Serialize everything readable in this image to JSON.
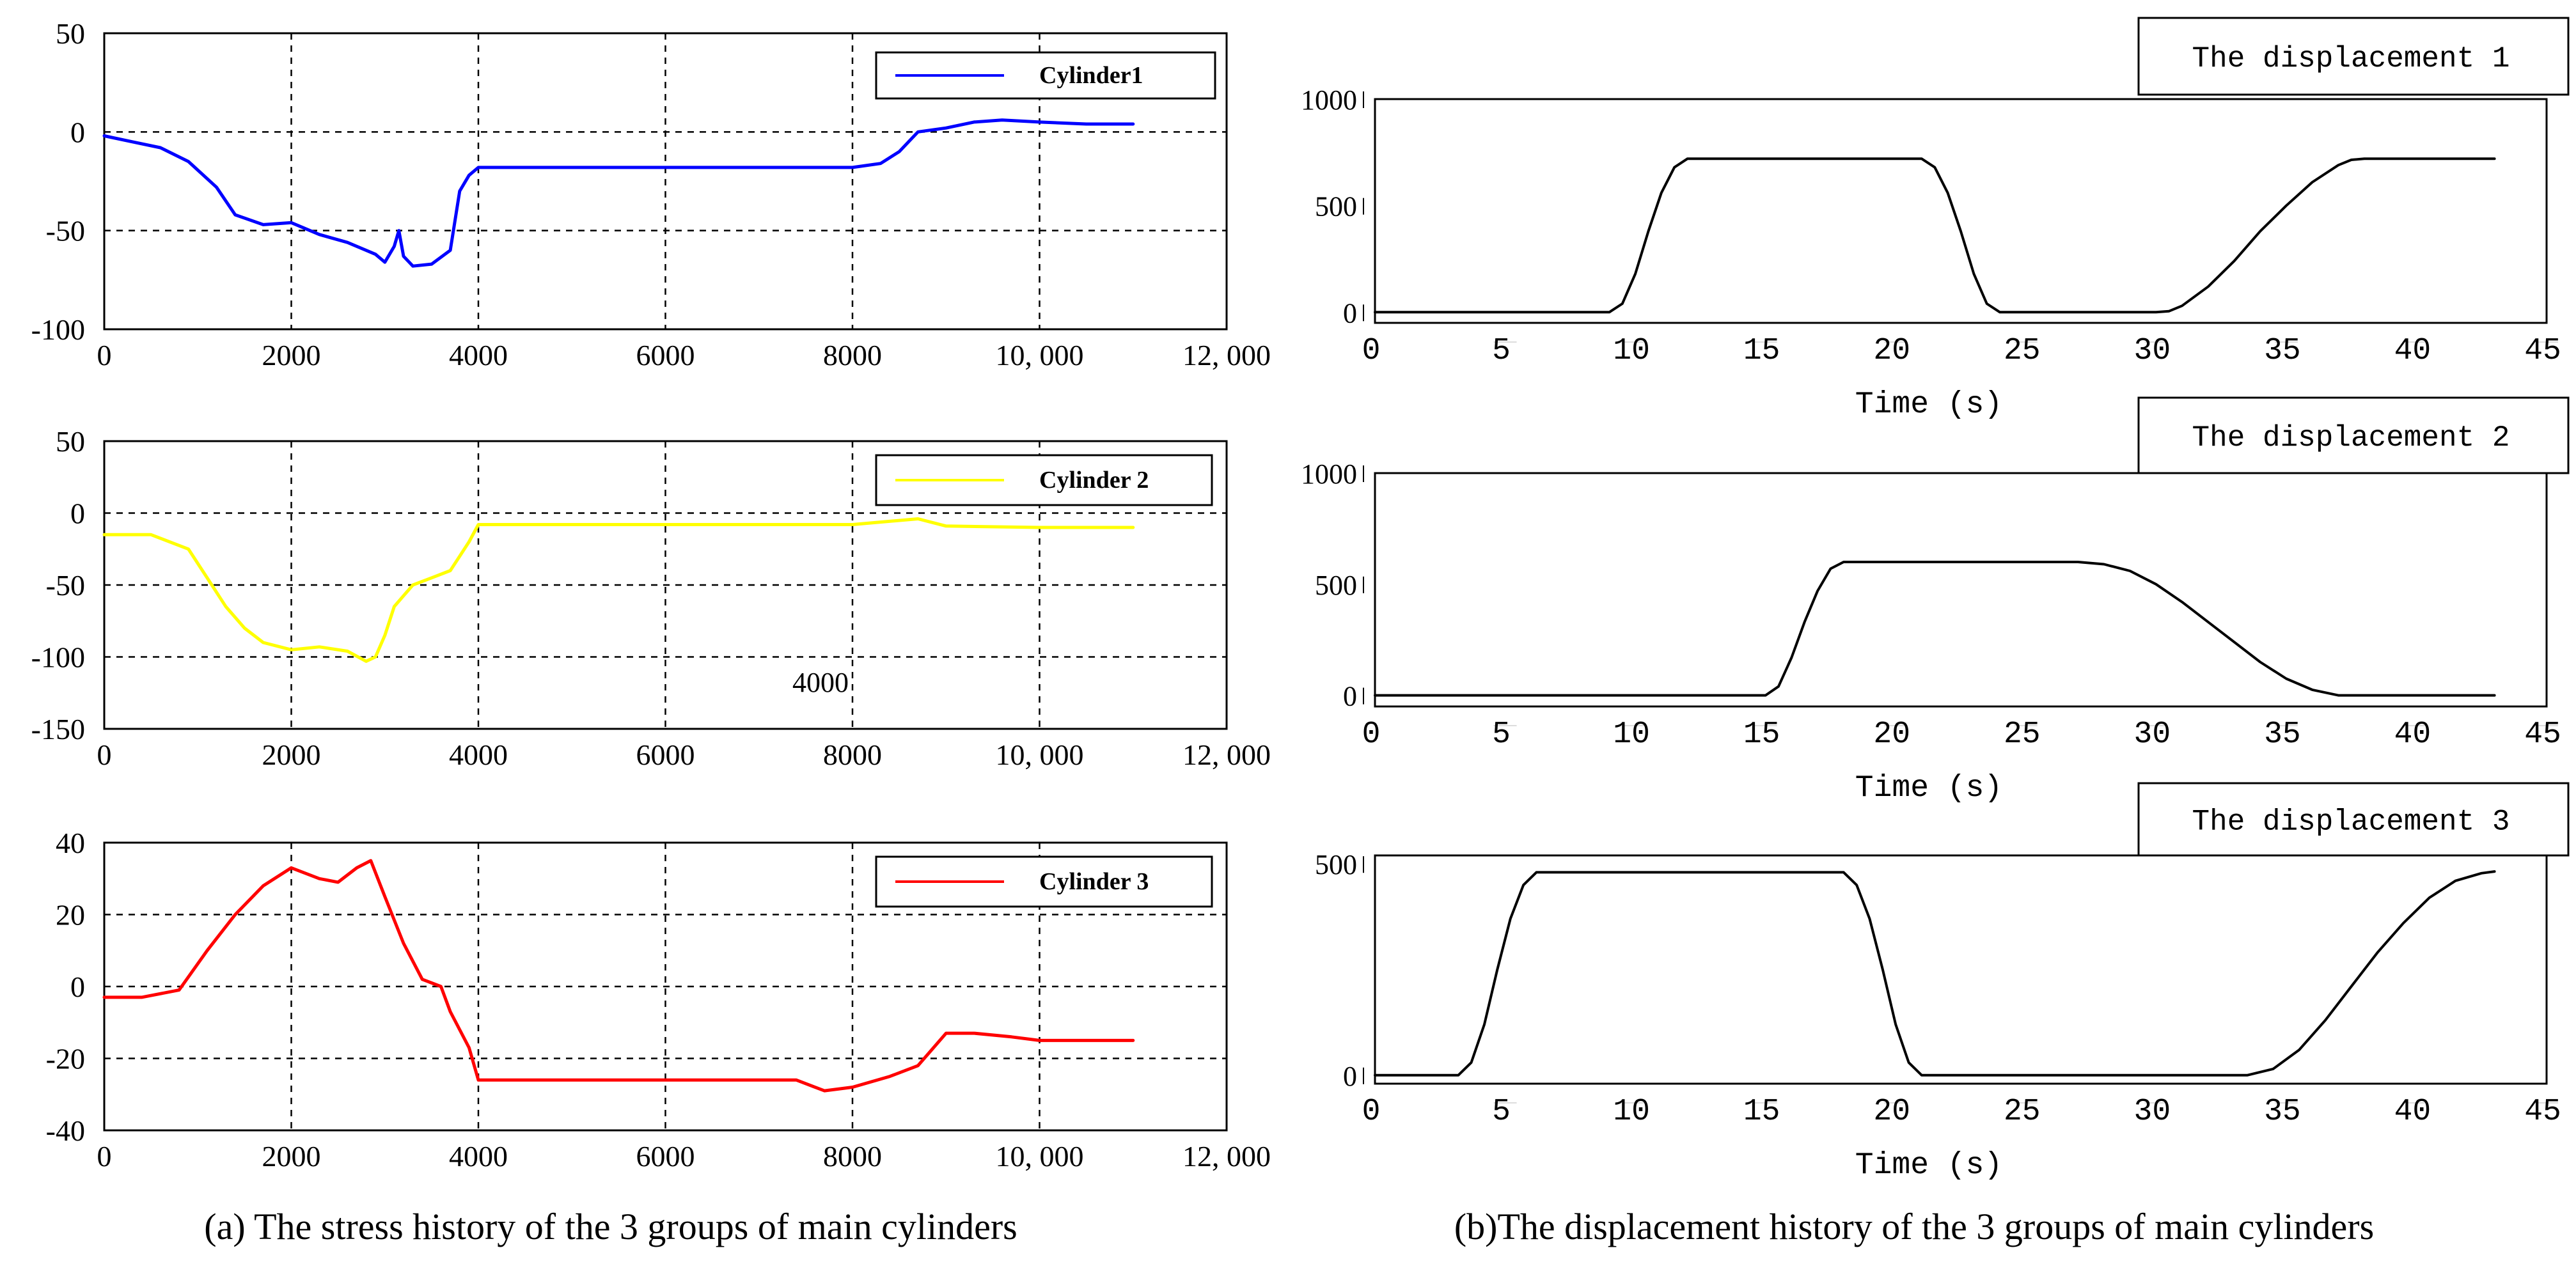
{
  "captions": {
    "left": "(a) The stress history of the 3 groups of main cylinders",
    "right": "(b)The displacement history of the 3 groups of main cylinders"
  },
  "stray_label": "4000",
  "chart_data": [
    {
      "id": "stress1",
      "type": "line",
      "grid": true,
      "legend_position": "top-right",
      "color": "#0000ff",
      "xlim": [
        0,
        12000
      ],
      "ylim": [
        -100,
        50
      ],
      "xticks": [
        0,
        2000,
        4000,
        6000,
        8000,
        10000,
        12000
      ],
      "xtick_labels": [
        "0",
        "2000",
        "4000",
        "6000",
        "8000",
        "10, 000",
        "12, 000"
      ],
      "yticks": [
        50,
        0,
        -50,
        -100
      ],
      "ytick_labels": [
        "50",
        "0",
        "-50",
        "-100"
      ],
      "series": [
        {
          "name": "Cylinder1",
          "x": [
            0,
            300,
            600,
            900,
            1200,
            1400,
            1700,
            2000,
            2300,
            2600,
            2900,
            3000,
            3100,
            3150,
            3200,
            3300,
            3500,
            3700,
            3800,
            3900,
            4000,
            5000,
            6000,
            7000,
            8000,
            8300,
            8500,
            8700,
            9000,
            9300,
            9600,
            10000,
            10500,
            11000
          ],
          "y": [
            -2,
            -5,
            -8,
            -15,
            -28,
            -42,
            -47,
            -46,
            -52,
            -56,
            -62,
            -66,
            -58,
            -50,
            -63,
            -68,
            -67,
            -60,
            -30,
            -22,
            -18,
            -18,
            -18,
            -18,
            -18,
            -16,
            -10,
            0,
            2,
            5,
            6,
            5,
            4,
            4
          ]
        }
      ]
    },
    {
      "id": "stress2",
      "type": "line",
      "grid": true,
      "legend_position": "top-right",
      "color": "#ffff00",
      "xlim": [
        0,
        12000
      ],
      "ylim": [
        -150,
        50
      ],
      "xticks": [
        0,
        2000,
        4000,
        6000,
        8000,
        10000,
        12000
      ],
      "xtick_labels": [
        "0",
        "2000",
        "4000",
        "6000",
        "8000",
        "10, 000",
        "12, 000"
      ],
      "yticks": [
        50,
        0,
        -50,
        -100,
        -150
      ],
      "ytick_labels": [
        "50",
        "0",
        "-50",
        "-100",
        "-150"
      ],
      "series": [
        {
          "name": "Cylinder 2",
          "x": [
            0,
            500,
            900,
            1100,
            1300,
            1500,
            1700,
            2000,
            2300,
            2600,
            2800,
            2900,
            3000,
            3100,
            3300,
            3500,
            3700,
            3800,
            3900,
            4000,
            5000,
            6000,
            7000,
            8000,
            8700,
            9000,
            10000,
            11000
          ],
          "y": [
            -15,
            -15,
            -25,
            -45,
            -65,
            -80,
            -90,
            -95,
            -93,
            -96,
            -103,
            -100,
            -85,
            -65,
            -50,
            -45,
            -40,
            -30,
            -20,
            -8,
            -8,
            -8,
            -8,
            -8,
            -4,
            -9,
            -10,
            -10
          ]
        }
      ]
    },
    {
      "id": "stress3",
      "type": "line",
      "grid": true,
      "legend_position": "top-right",
      "color": "#ff0000",
      "xlim": [
        0,
        12000
      ],
      "ylim": [
        -40,
        40
      ],
      "xticks": [
        0,
        2000,
        4000,
        6000,
        8000,
        10000,
        12000
      ],
      "xtick_labels": [
        "0",
        "2000",
        "4000",
        "6000",
        "8000",
        "10, 000",
        "12, 000"
      ],
      "yticks": [
        40,
        20,
        0,
        -20,
        -40
      ],
      "ytick_labels": [
        "40",
        "20",
        "0",
        "-20",
        "-40"
      ],
      "series": [
        {
          "name": "Cylinder 3",
          "x": [
            0,
            400,
            800,
            1100,
            1400,
            1700,
            2000,
            2300,
            2500,
            2700,
            2850,
            3000,
            3200,
            3400,
            3600,
            3700,
            3900,
            4000,
            5000,
            6000,
            7000,
            7400,
            7700,
            8000,
            8400,
            8700,
            9000,
            9300,
            9700,
            10000,
            10500,
            11000
          ],
          "y": [
            -3,
            -3,
            -1,
            10,
            20,
            28,
            33,
            30,
            29,
            33,
            35,
            25,
            12,
            2,
            0,
            -7,
            -17,
            -26,
            -26,
            -26,
            -26,
            -26,
            -29,
            -28,
            -25,
            -22,
            -13,
            -13,
            -14,
            -15,
            -15,
            -15
          ]
        }
      ]
    },
    {
      "id": "disp1",
      "type": "line",
      "grid": false,
      "legend_position": "top-right",
      "color": "#000000",
      "xlim": [
        0,
        45
      ],
      "ylim": [
        -50,
        1000
      ],
      "xticks": [
        0,
        5,
        10,
        15,
        20,
        25,
        30,
        35,
        40,
        45
      ],
      "xtick_labels": [
        "0",
        "5",
        "10",
        "15",
        "20",
        "25",
        "30",
        "35",
        "40",
        "45"
      ],
      "yticks": [
        1000,
        500,
        0
      ],
      "ytick_labels": [
        "1000",
        "500",
        "0"
      ],
      "xlabel": "Time (s)",
      "series": [
        {
          "name": "The displacement 1",
          "x": [
            0,
            9,
            9.5,
            10,
            10.5,
            11,
            11.5,
            12,
            21,
            21.5,
            22,
            22.5,
            23,
            23.5,
            24,
            30,
            30.5,
            31,
            32,
            33,
            34,
            35,
            36,
            37,
            37.5,
            38,
            43
          ],
          "y": [
            0,
            0,
            40,
            180,
            380,
            560,
            680,
            720,
            720,
            680,
            560,
            380,
            180,
            40,
            0,
            0,
            5,
            30,
            120,
            240,
            380,
            500,
            610,
            690,
            715,
            720,
            720
          ]
        }
      ]
    },
    {
      "id": "disp2",
      "type": "line",
      "grid": false,
      "legend_position": "top-right",
      "color": "#000000",
      "xlim": [
        0,
        45
      ],
      "ylim": [
        -50,
        1000
      ],
      "xticks": [
        0,
        5,
        10,
        15,
        20,
        25,
        30,
        35,
        40,
        45
      ],
      "xtick_labels": [
        "0",
        "5",
        "10",
        "15",
        "20",
        "25",
        "30",
        "35",
        "40",
        "45"
      ],
      "yticks": [
        1000,
        500,
        0
      ],
      "ytick_labels": [
        "1000",
        "500",
        "0"
      ],
      "xlabel": "Time (s)",
      "series": [
        {
          "name": "The displacement 2",
          "x": [
            0,
            15,
            15.5,
            16,
            16.5,
            17,
            17.5,
            18,
            27,
            28,
            29,
            30,
            31,
            32,
            33,
            34,
            35,
            36,
            37,
            43
          ],
          "y": [
            0,
            0,
            40,
            170,
            330,
            470,
            570,
            600,
            600,
            590,
            560,
            500,
            420,
            330,
            240,
            150,
            75,
            25,
            0,
            0
          ]
        }
      ]
    },
    {
      "id": "disp3",
      "type": "line",
      "grid": false,
      "legend_position": "top-right",
      "color": "#000000",
      "xlim": [
        0,
        45
      ],
      "ylim": [
        -20,
        520
      ],
      "xticks": [
        0,
        5,
        10,
        15,
        20,
        25,
        30,
        35,
        40,
        45
      ],
      "xtick_labels": [
        "0",
        "5",
        "10",
        "15",
        "20",
        "25",
        "30",
        "35",
        "40",
        "45"
      ],
      "yticks": [
        500,
        0
      ],
      "ytick_labels": [
        "500",
        "0"
      ],
      "xlabel": "Time (s)",
      "series": [
        {
          "name": "The displacement 3",
          "x": [
            0,
            3.2,
            3.7,
            4.2,
            4.7,
            5.2,
            5.7,
            6.2,
            18,
            18.5,
            19,
            19.5,
            20,
            20.5,
            21,
            33.5,
            34.5,
            35.5,
            36.5,
            37.5,
            38.5,
            39.5,
            40.5,
            41.5,
            42.5,
            43
          ],
          "y": [
            0,
            0,
            30,
            120,
            250,
            370,
            450,
            480,
            480,
            450,
            370,
            250,
            120,
            30,
            0,
            0,
            15,
            60,
            130,
            210,
            290,
            360,
            420,
            460,
            478,
            482
          ]
        }
      ]
    }
  ]
}
